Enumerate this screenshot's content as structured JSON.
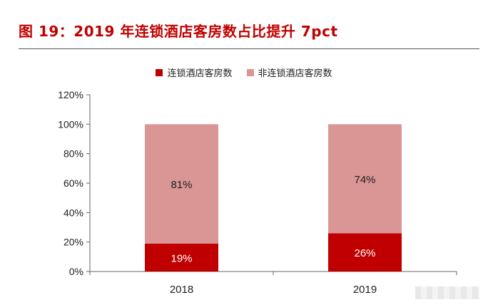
{
  "title": "图 19：2019 年连锁酒店客房数占比提升 7pct",
  "chart_data": {
    "type": "bar",
    "stacked": true,
    "categories": [
      "2018",
      "2019"
    ],
    "series": [
      {
        "name": "连锁酒店客房数",
        "values": [
          19,
          26
        ],
        "labels": [
          "19%",
          "26%"
        ],
        "color": "#c00000"
      },
      {
        "name": "非连锁酒店客房数",
        "values": [
          81,
          74
        ],
        "labels": [
          "81%",
          "74%"
        ],
        "color": "#d99694"
      }
    ],
    "ylim": [
      0,
      120
    ],
    "yticks": [
      "0%",
      "20%",
      "40%",
      "60%",
      "80%",
      "100%",
      "120%"
    ],
    "grid": false,
    "legend": "top-center"
  }
}
